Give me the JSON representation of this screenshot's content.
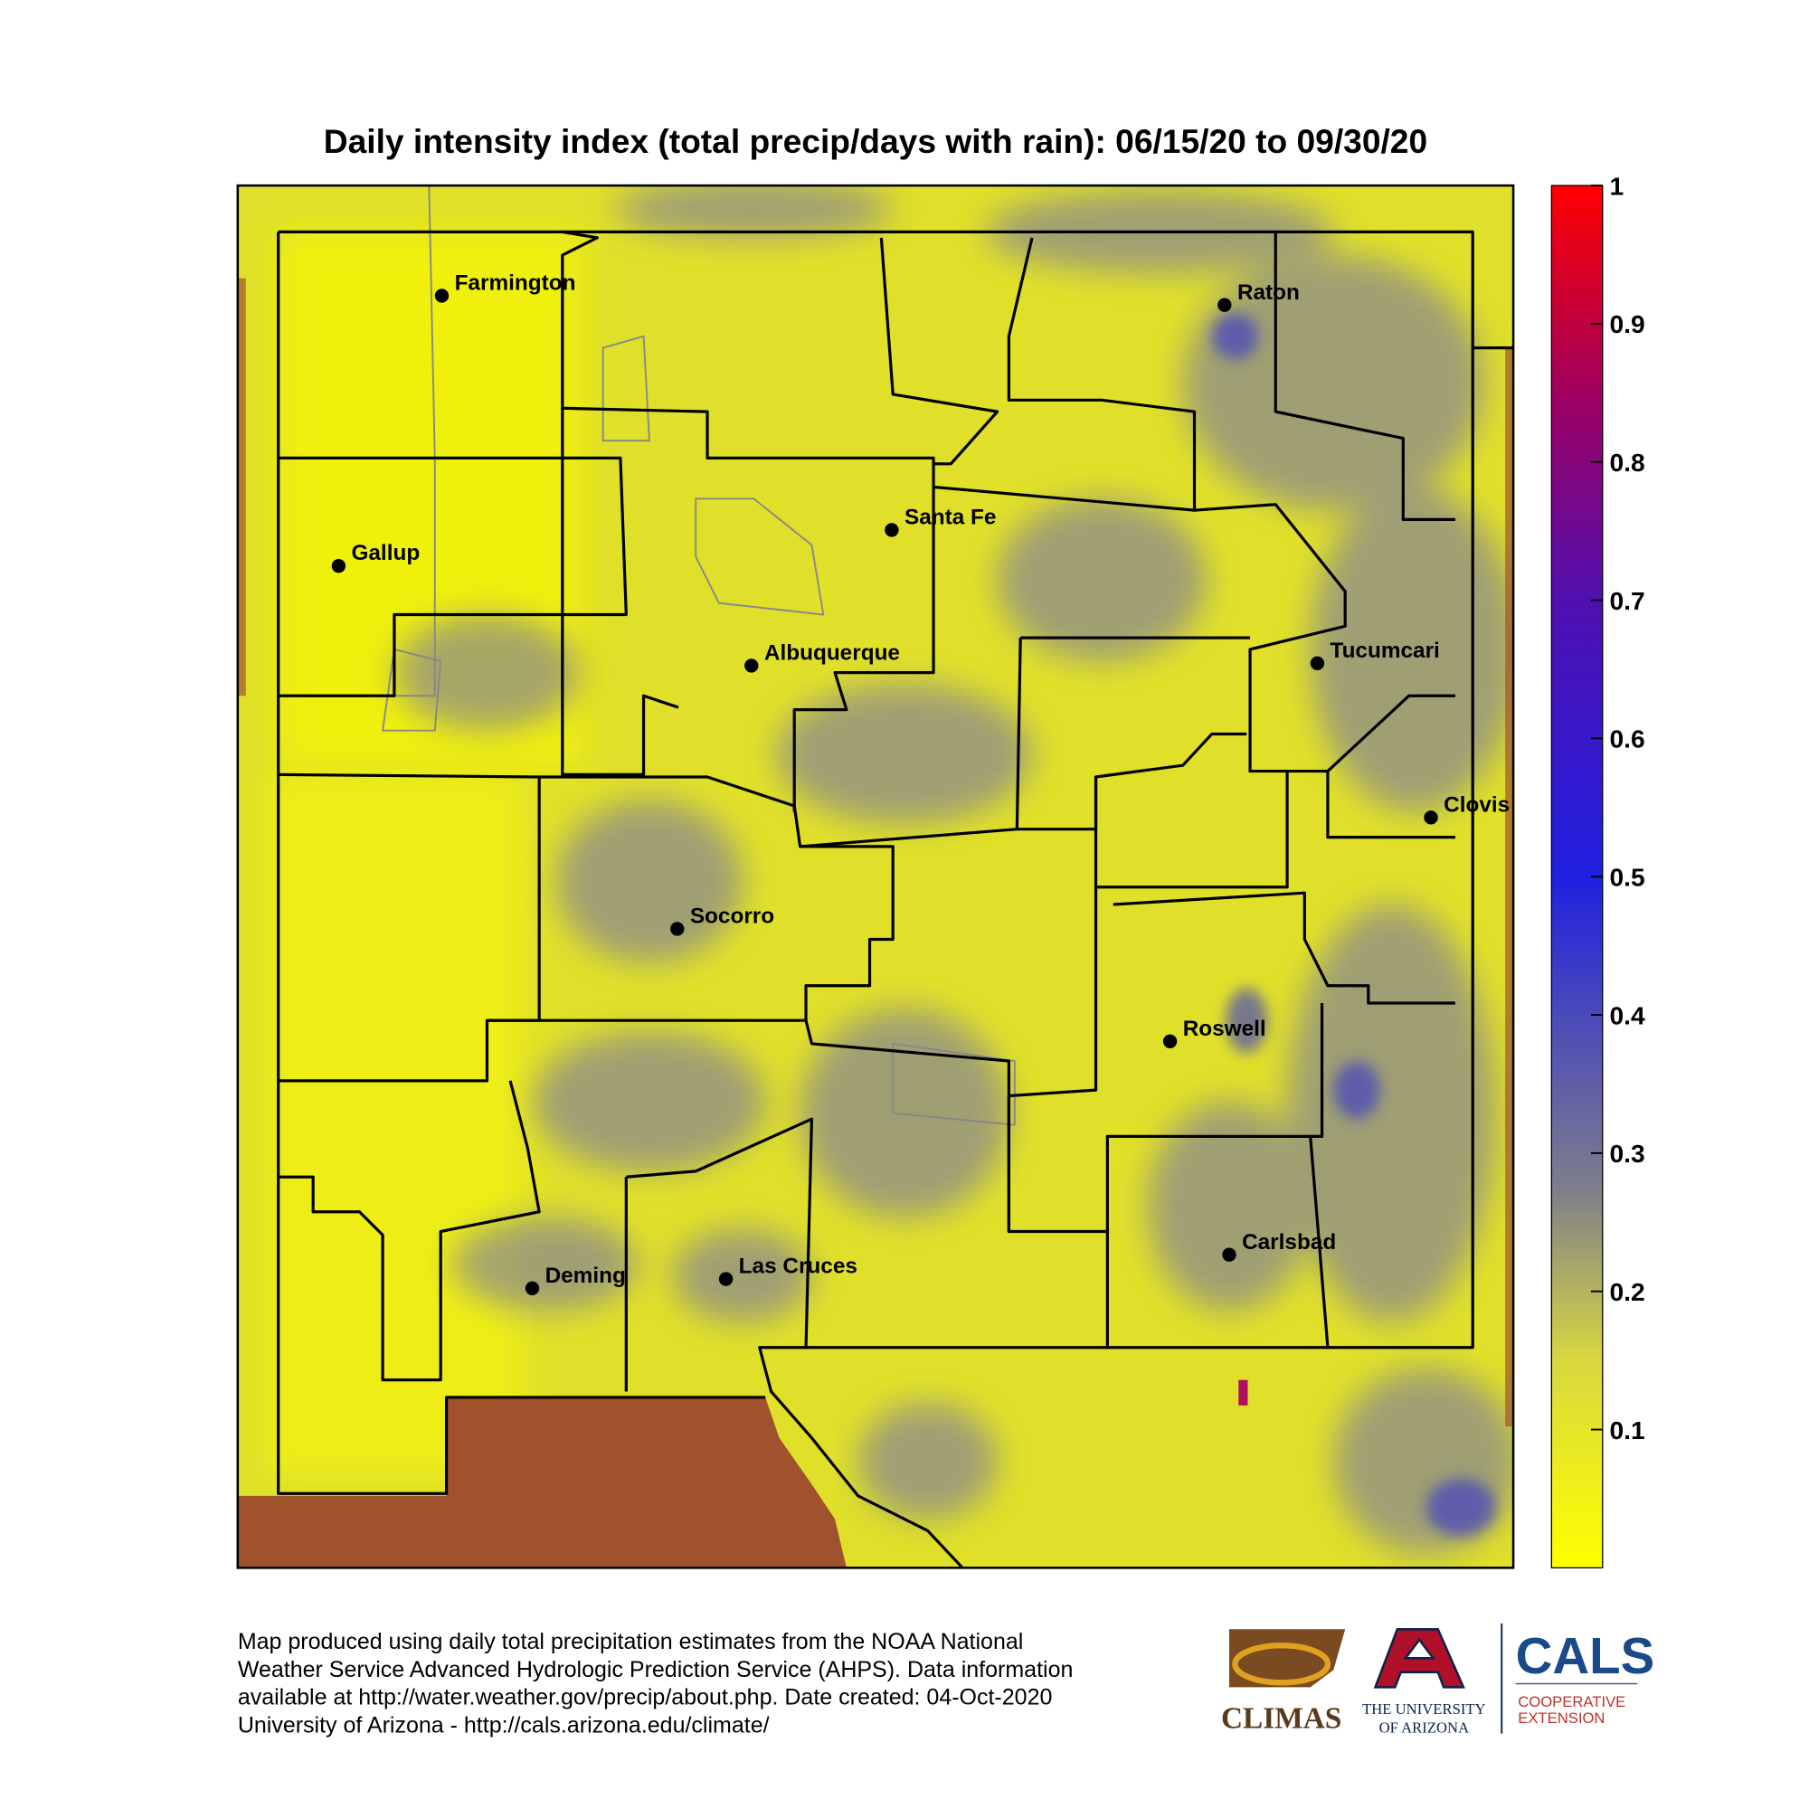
{
  "title": "Daily intensity index (total precip/days with rain): 06/15/20 to 09/30/20",
  "cities": [
    "Farmington",
    "Gallup",
    "Santa Fe",
    "Albuquerque",
    "Raton",
    "Tucumcari",
    "Clovis",
    "Socorro",
    "Roswell",
    "Carlsbad",
    "Deming",
    "Las Cruces"
  ],
  "colorbar": {
    "lim": [
      0,
      1
    ],
    "ticks": [
      0.1,
      0.2,
      0.3,
      0.4,
      0.5,
      0.6,
      0.7,
      0.8,
      0.9,
      1
    ]
  },
  "footer": [
    "Map produced using daily total precipitation estimates from the NOAA National",
    "Weather Service Advanced Hydrologic Prediction Service (AHPS). Data information",
    "available at http://water.weather.gov/precip/about.php. Date created: 04-Oct-2020",
    "University of Arizona - http://cals.arizona.edu/climate/"
  ],
  "logos": {
    "climas": "CLIMAS",
    "university": [
      "THE UNIVERSITY",
      "OF ARIZONA"
    ],
    "cals": "CALS",
    "extension": [
      "COOPERATIVE",
      "EXTENSION"
    ]
  }
}
